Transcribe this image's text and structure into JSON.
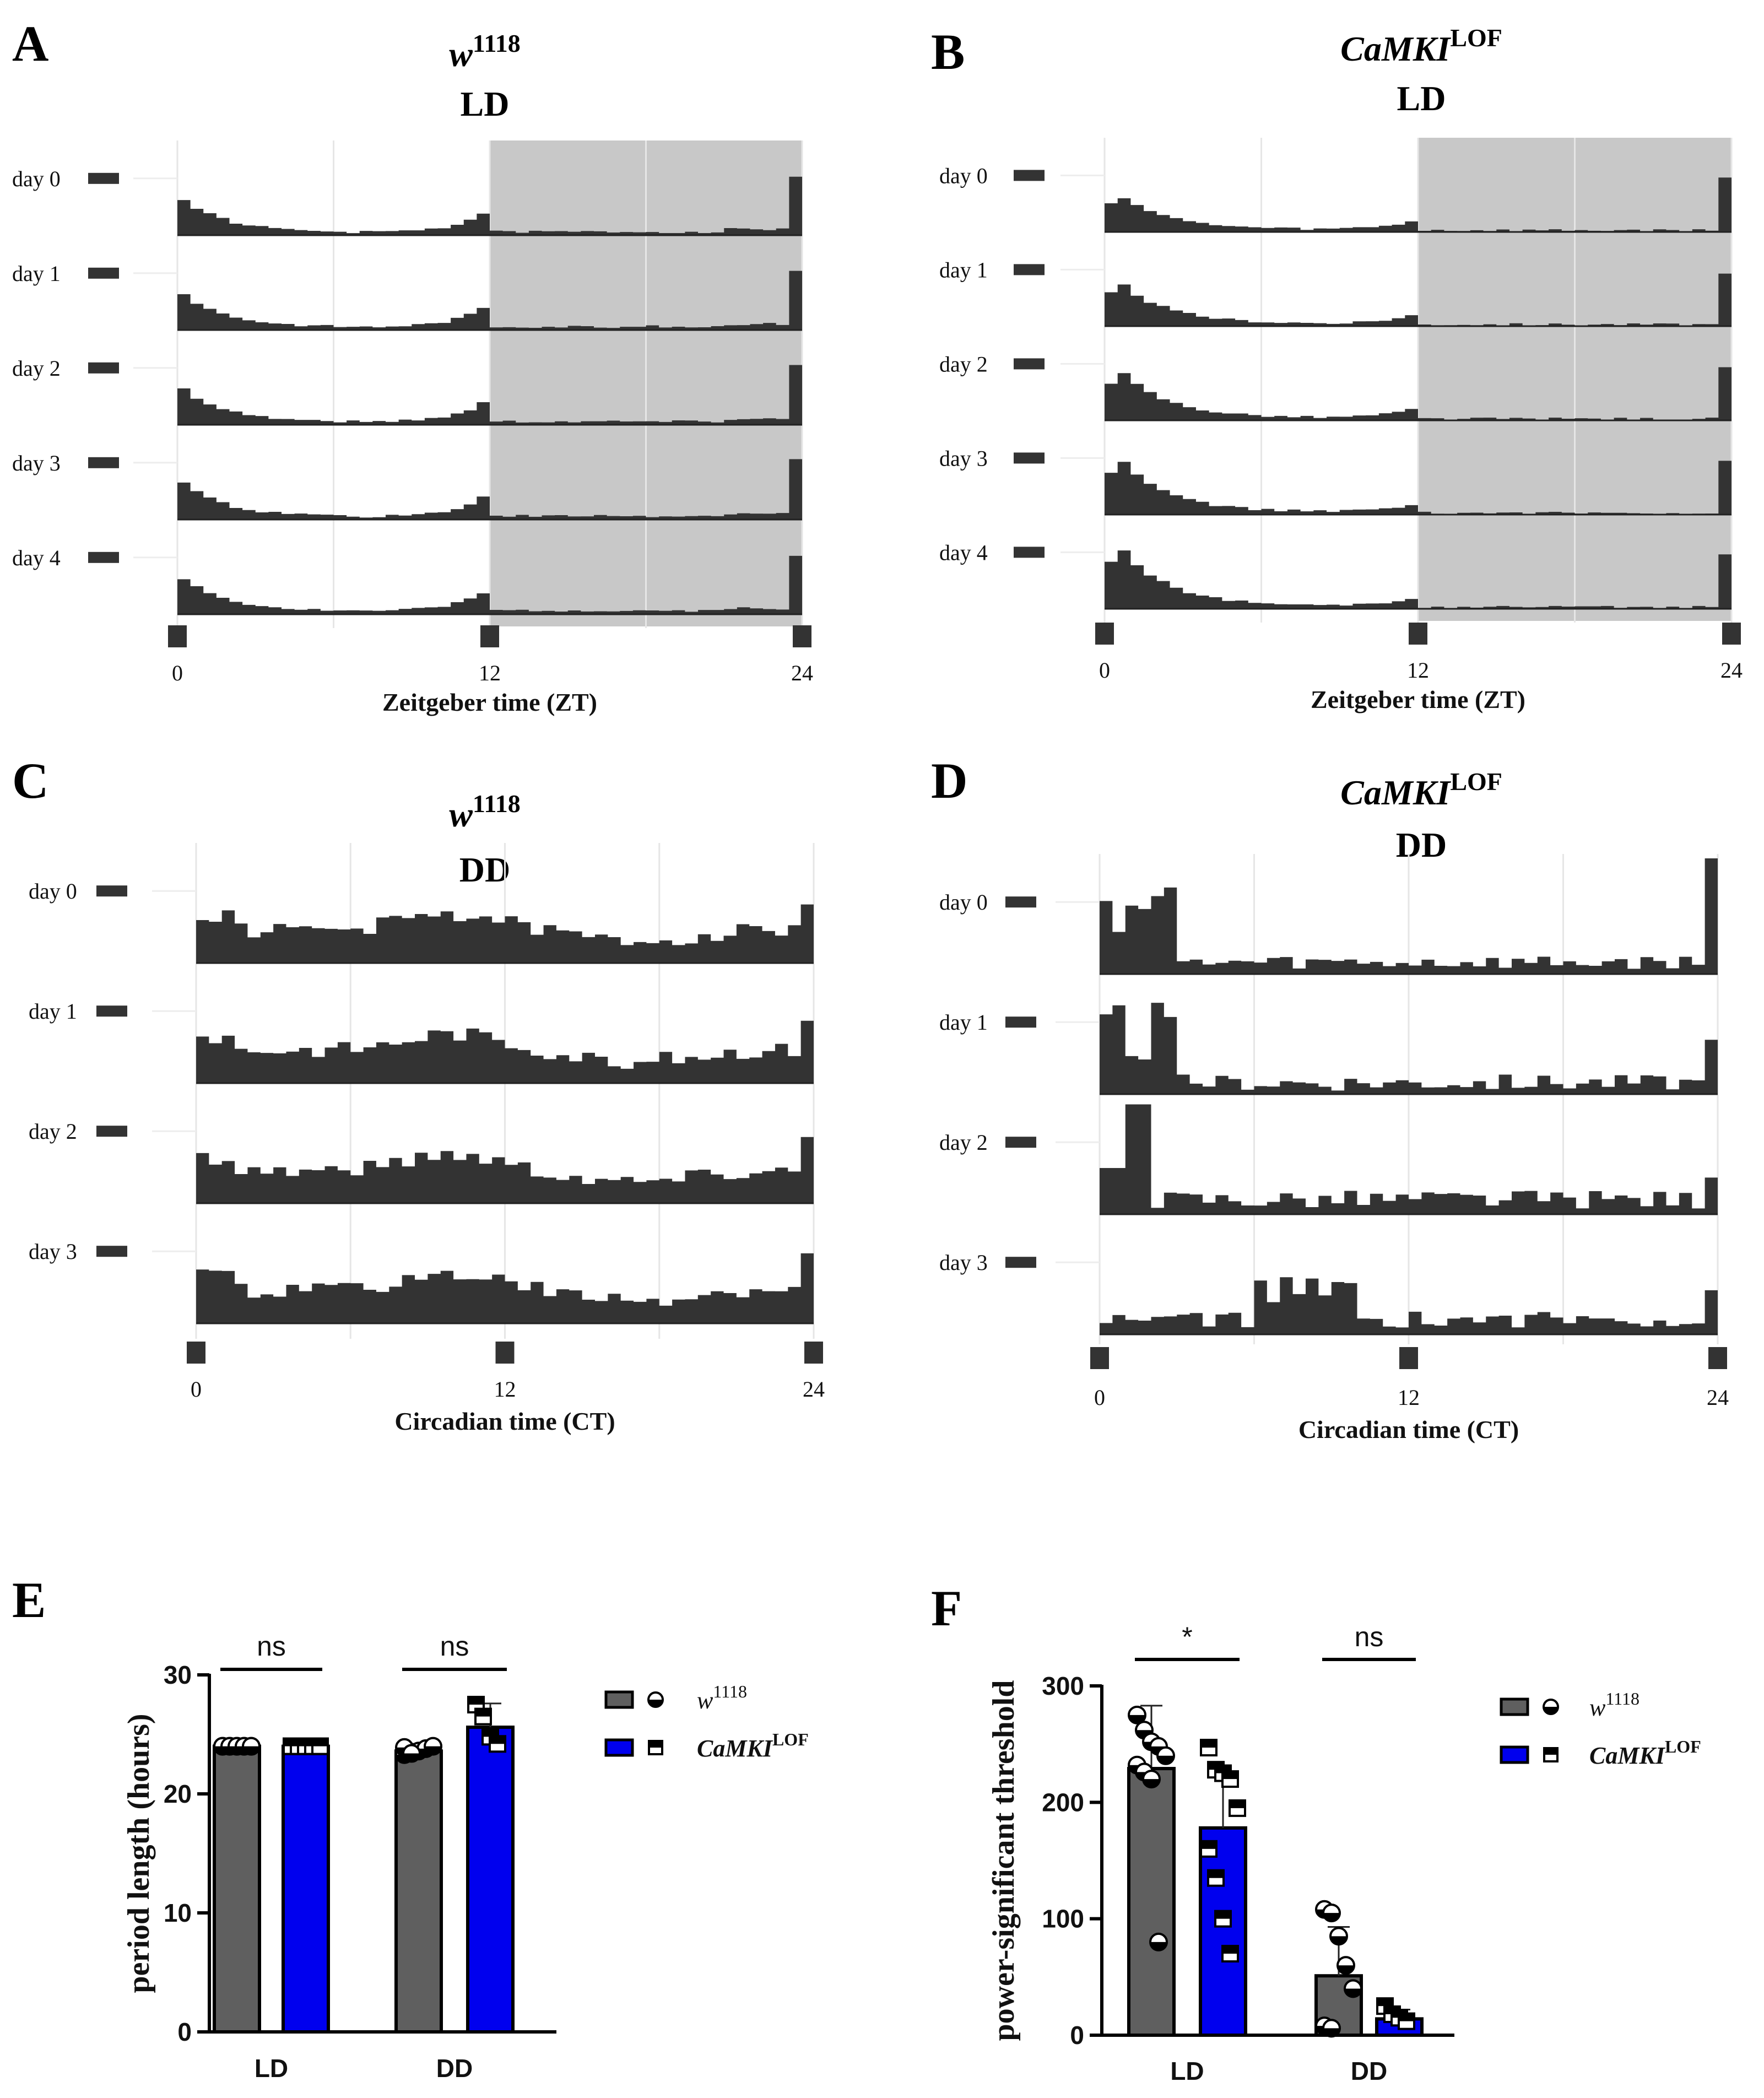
{
  "panel_letters": [
    "A",
    "B",
    "C",
    "D",
    "E",
    "F"
  ],
  "genotypes": {
    "wt_base": "w",
    "wt_sup": "1118",
    "mut_base": "CaMKI",
    "mut_sup": "LOF"
  },
  "conditions": {
    "ld": "LD",
    "dd": "DD"
  },
  "colors": {
    "wt": "#5f5f5f",
    "mut": "#0000ee",
    "trace": "#333333",
    "night": "#c8c8c8"
  },
  "chart_data": [
    {
      "panel": "A",
      "type": "actogram",
      "genotype": "w1118",
      "condition": "LD",
      "xlabel": "Zeitgeber time (ZT)",
      "xticks": [
        "0",
        "12",
        "24"
      ],
      "day_labels": [
        "day 0",
        "day 1",
        "day 2",
        "day 3",
        "day 4"
      ],
      "dark_phase": [
        12,
        24
      ],
      "pattern": "wt_ld"
    },
    {
      "panel": "B",
      "type": "actogram",
      "genotype": "CaMKI LOF",
      "condition": "LD",
      "xlabel": "Zeitgeber time (ZT)",
      "xticks": [
        "0",
        "12",
        "24"
      ],
      "day_labels": [
        "day 0",
        "day 1",
        "day 2",
        "day 3",
        "day 4"
      ],
      "dark_phase": [
        12,
        24
      ],
      "pattern": "mut_ld"
    },
    {
      "panel": "C",
      "type": "actogram",
      "genotype": "w1118",
      "condition": "DD",
      "xlabel": "Circadian time (CT)",
      "xticks": [
        "0",
        "12",
        "24"
      ],
      "day_labels": [
        "day 0",
        "day 1",
        "day 2",
        "day 3"
      ],
      "dark_phase": null,
      "pattern": "wt_dd"
    },
    {
      "panel": "D",
      "type": "actogram",
      "genotype": "CaMKI LOF",
      "condition": "DD",
      "xlabel": "Circadian time (CT)",
      "xticks": [
        "0",
        "12",
        "24"
      ],
      "day_labels": [
        "day 0",
        "day 1",
        "day 2",
        "day 3"
      ],
      "dark_phase": null,
      "pattern": "mut_dd"
    },
    {
      "panel": "E",
      "type": "bar",
      "ylabel": "period length (hours)",
      "ylim": [
        0,
        30
      ],
      "yticks": [
        "0",
        "10",
        "20",
        "30"
      ],
      "categories": [
        "LD",
        "DD"
      ],
      "series": [
        {
          "name": "w1118",
          "values": [
            24.0,
            23.6
          ],
          "errors": [
            0.1,
            0.4
          ],
          "points": [
            [
              24,
              24,
              24,
              24,
              24,
              24,
              24,
              24,
              24,
              24
            ],
            [
              23.3,
              23.5,
              23.6,
              23.8,
              24.0,
              23.9,
              23.4
            ]
          ]
        },
        {
          "name": "CaMKI LOF",
          "values": [
            24.0,
            25.6
          ],
          "errors": [
            0.1,
            2.0
          ],
          "points": [
            [
              24,
              24,
              24,
              24,
              24,
              24,
              24,
              24,
              24,
              24
            ],
            [
              27.5,
              26.5,
              24.8,
              24.2
            ]
          ]
        }
      ],
      "significance": [
        "ns",
        "ns"
      ]
    },
    {
      "panel": "F",
      "type": "bar",
      "ylabel": "power-significant threshold",
      "ylim": [
        0,
        300
      ],
      "yticks": [
        "0",
        "100",
        "200",
        "300"
      ],
      "categories": [
        "LD",
        "DD"
      ],
      "series": [
        {
          "name": "w1118",
          "values": [
            229,
            51
          ],
          "errors": [
            54,
            42
          ],
          "points": [
            [
              275,
              262,
              252,
              248,
              240,
              232,
              226,
              220,
              80
            ],
            [
              108,
              105,
              85,
              60,
              40,
              8,
              6
            ]
          ]
        },
        {
          "name": "CaMKI LOF",
          "values": [
            178,
            14
          ],
          "errors": [
            45,
            8
          ],
          "points": [
            [
              247,
              228,
              225,
              220,
              195,
              160,
              135,
              100,
              70
            ],
            [
              25,
              18,
              15,
              12
            ]
          ]
        }
      ],
      "significance": [
        "*",
        "ns"
      ]
    }
  ]
}
